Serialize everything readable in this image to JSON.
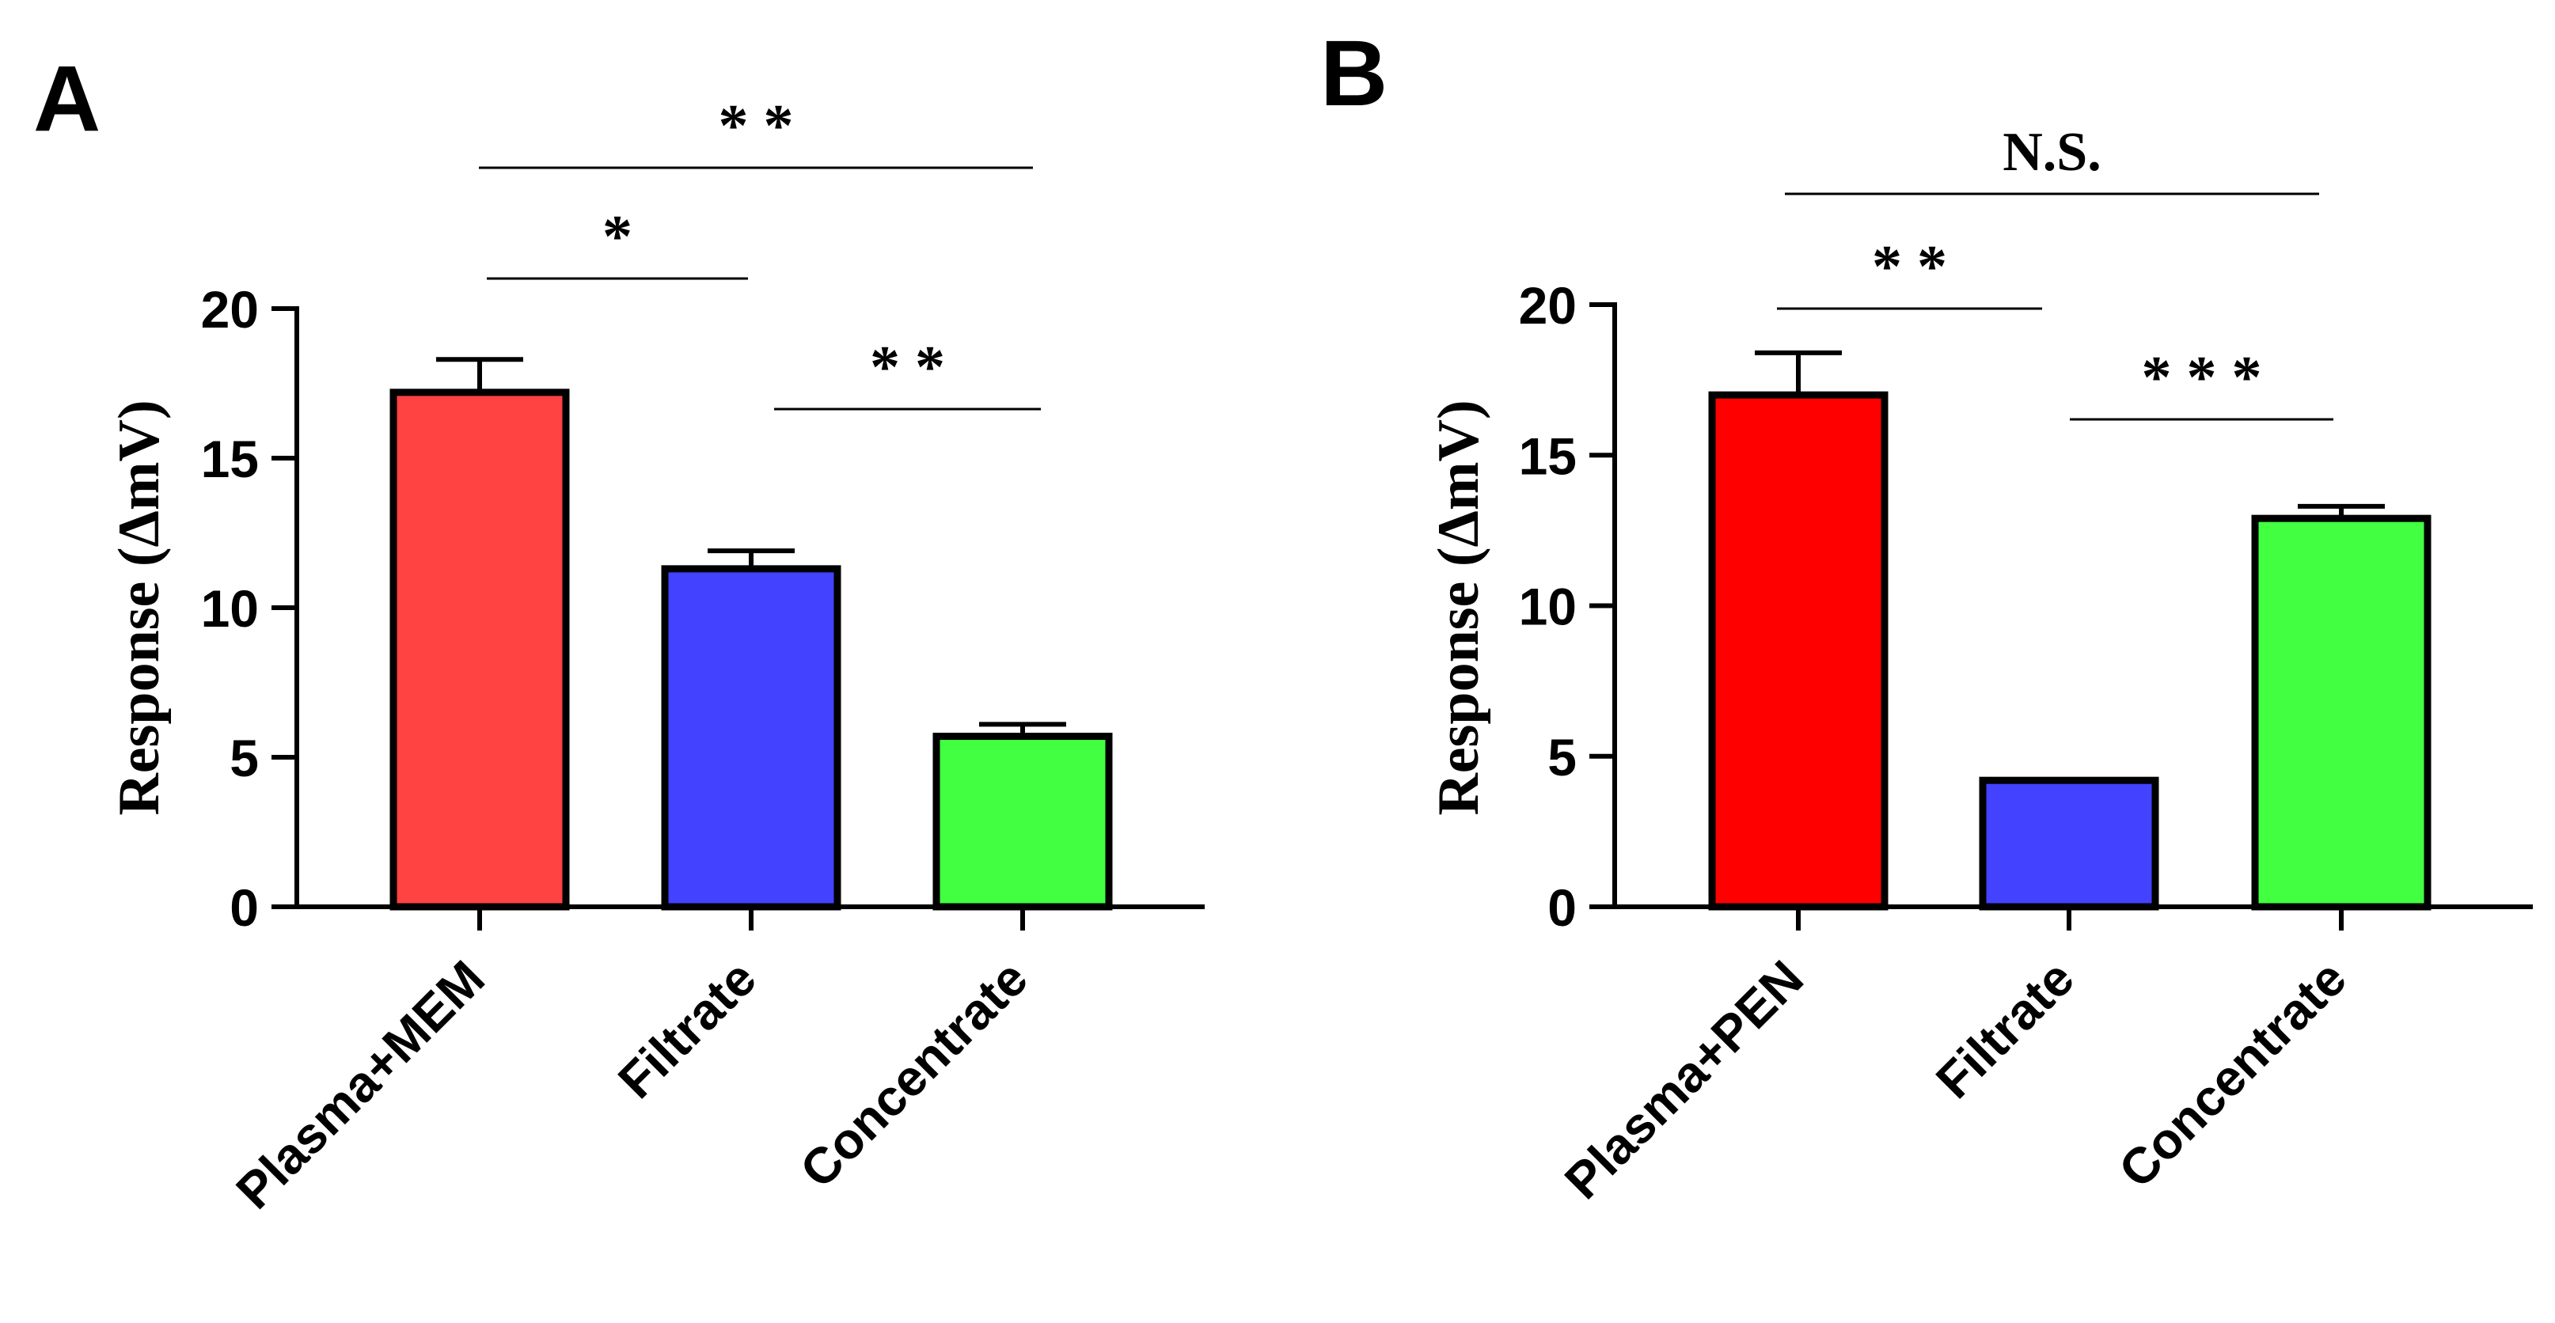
{
  "chart_data": [
    {
      "panel": "A",
      "type": "bar",
      "categories": [
        "Plasma+MEM",
        "Filtrate",
        "Concentrate"
      ],
      "values": [
        17.2,
        11.3,
        5.7
      ],
      "errors": [
        1.1,
        0.6,
        0.4
      ],
      "colors": [
        "#ff4242",
        "#4242ff",
        "#42ff42"
      ],
      "ylabel": "Response (ΔmV)",
      "ylim": [
        0,
        20
      ],
      "yticks": [
        "0",
        "5",
        "10",
        "15",
        "20"
      ],
      "significance": [
        {
          "from": 0,
          "to": 1,
          "label": "*"
        },
        {
          "from": 1,
          "to": 2,
          "label": "* *"
        },
        {
          "from": 0,
          "to": 2,
          "label": "* *"
        }
      ]
    },
    {
      "panel": "B",
      "type": "bar",
      "categories": [
        "Plasma+PEN",
        "Filtrate",
        "Concentrate"
      ],
      "values": [
        17.0,
        4.2,
        12.9
      ],
      "errors": [
        1.4,
        0.0,
        0.4
      ],
      "colors": [
        "#ff0000",
        "#4242ff",
        "#42ff42"
      ],
      "ylabel": "Response (ΔmV)",
      "ylim": [
        0,
        20
      ],
      "yticks": [
        "0",
        "5",
        "10",
        "15",
        "20"
      ],
      "significance": [
        {
          "from": 0,
          "to": 1,
          "label": "* *"
        },
        {
          "from": 1,
          "to": 2,
          "label": "* * *"
        },
        {
          "from": 0,
          "to": 2,
          "label": "N.S."
        }
      ]
    }
  ]
}
